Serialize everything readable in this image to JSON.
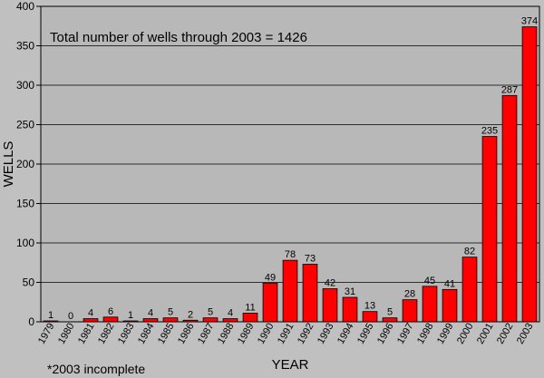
{
  "chart_data": {
    "type": "bar",
    "annotation": "Total number of wells through 2003 = 1426",
    "footnote": "*2003 incomplete",
    "xlabel": "YEAR",
    "ylabel": "WELLS",
    "ylim": [
      0,
      400
    ],
    "yticks": [
      0,
      50,
      100,
      150,
      200,
      250,
      300,
      350,
      400
    ],
    "grid": true,
    "bar_color": "#ff0000",
    "plot_background": "#b8b8b8",
    "categories": [
      "1979",
      "1980",
      "1981",
      "1982",
      "1983",
      "1984",
      "1985",
      "1986",
      "1987",
      "1988",
      "1989",
      "1990",
      "1991",
      "1992",
      "1993",
      "1994",
      "1995",
      "1996",
      "1997",
      "1998",
      "1999",
      "2000",
      "2001",
      "2002",
      "2003"
    ],
    "values": [
      1,
      0,
      4,
      6,
      1,
      4,
      5,
      2,
      5,
      4,
      11,
      49,
      78,
      73,
      42,
      31,
      13,
      5,
      28,
      45,
      41,
      82,
      235,
      287,
      374
    ]
  }
}
